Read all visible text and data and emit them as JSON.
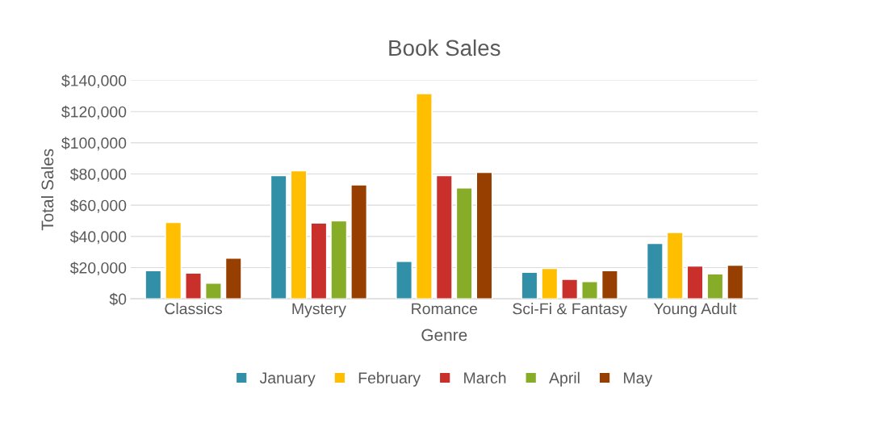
{
  "chart_data": {
    "type": "bar",
    "title": "Book Sales",
    "xlabel": "Genre",
    "ylabel": "Total Sales",
    "categories": [
      "Classics",
      "Mystery",
      "Romance",
      "Sci-Fi & Fantasy",
      "Young Adult"
    ],
    "series": [
      {
        "name": "January",
        "color": "#318fa8",
        "values": [
          18000,
          79000,
          24000,
          17000,
          35500
        ]
      },
      {
        "name": "February",
        "color": "#ffbf00",
        "values": [
          49000,
          82000,
          131500,
          19500,
          42500
        ]
      },
      {
        "name": "March",
        "color": "#c9302c",
        "values": [
          16500,
          48500,
          79000,
          12500,
          21000
        ]
      },
      {
        "name": "April",
        "color": "#86ac28",
        "values": [
          10000,
          50000,
          71000,
          11000,
          16000
        ]
      },
      {
        "name": "May",
        "color": "#973f00",
        "values": [
          26000,
          73000,
          81000,
          18000,
          21500
        ]
      }
    ],
    "ylim": [
      0,
      140000
    ],
    "yticks": [
      {
        "value": 0,
        "label": "$0"
      },
      {
        "value": 20000,
        "label": "$20,000"
      },
      {
        "value": 40000,
        "label": "$40,000"
      },
      {
        "value": 60000,
        "label": "$60,000"
      },
      {
        "value": 80000,
        "label": "$80,000"
      },
      {
        "value": 100000,
        "label": "$100,000"
      },
      {
        "value": 120000,
        "label": "$120,000"
      },
      {
        "value": 140000,
        "label": "$140,000"
      }
    ],
    "grid": "y",
    "legend": "bottom"
  }
}
